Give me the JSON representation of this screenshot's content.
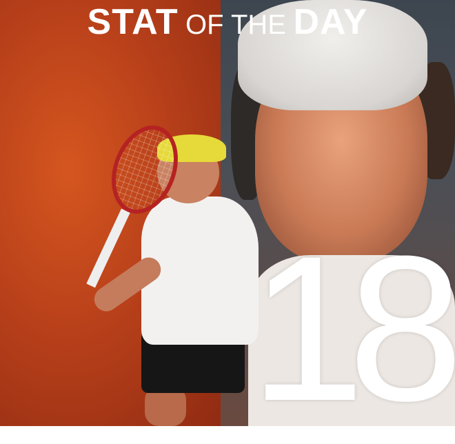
{
  "title": {
    "stat": "STAT",
    "of_the": "OF THE",
    "day": "DAY"
  },
  "stat_value": "18",
  "colors": {
    "left_bg": "#c4491c",
    "right_bg": "#454c54",
    "text": "#ffffff"
  }
}
